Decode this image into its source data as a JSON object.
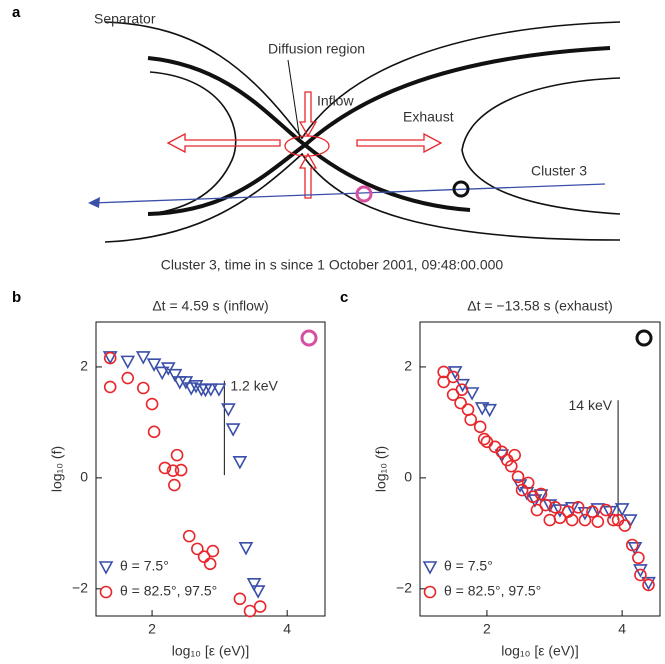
{
  "diagram": {
    "panel": "a",
    "separator": "Separator",
    "diffusion": "Diffusion region",
    "inflow": "Inflow",
    "exhaust": "Exhaust",
    "spacecraft": "Cluster 3",
    "caption": "Cluster 3, time in s since 1 October 2001, 09:48:00.000"
  },
  "chart_data": [
    {
      "type": "scatter",
      "panel": "b",
      "title": "Δt = 4.59 s (inflow)",
      "xlabel": "log₁₀ [ε (eV)]",
      "ylabel": "log₁₀ (f)",
      "xlim": [
        1.17,
        4.56
      ],
      "ylim": [
        -2.49,
        2.81
      ],
      "xticks": [
        2,
        4
      ],
      "yticks": [
        {
          "value": -2,
          "label": "−2"
        },
        0,
        2
      ],
      "legend": "lower left",
      "annotation": {
        "label": "1.2 keV",
        "x": 3.07
      },
      "series": [
        {
          "name": "θ = 7.5°",
          "color": "#3a4fa8",
          "marker": "triangle-down",
          "x": [
            1.38,
            1.64,
            1.87,
            2.03,
            2.15,
            2.24,
            2.34,
            2.41,
            2.5,
            2.58,
            2.65,
            2.73,
            2.79,
            2.87,
            2.99,
            3.13,
            3.2,
            3.3,
            3.39,
            3.51,
            3.57
          ],
          "values": [
            2.18,
            2.1,
            2.18,
            2.05,
            1.9,
            1.98,
            1.86,
            1.73,
            1.73,
            1.62,
            1.66,
            1.6,
            1.59,
            1.6,
            1.6,
            1.24,
            0.88,
            0.29,
            -1.26,
            -1.91,
            -2.04
          ]
        },
        {
          "name": "θ = 82.5°, 97.5°",
          "color": "#e8262b",
          "marker": "circle",
          "x": [
            1.38,
            1.38,
            1.64,
            1.87,
            2.0,
            2.03,
            2.19,
            2.31,
            2.33,
            2.37,
            2.43,
            2.55,
            2.67,
            2.77,
            2.86,
            2.9,
            3.3,
            3.45,
            3.6
          ],
          "values": [
            2.16,
            1.64,
            1.8,
            1.62,
            1.33,
            0.83,
            0.18,
            0.13,
            -0.13,
            0.41,
            0.14,
            -1.05,
            -1.28,
            -1.42,
            -1.55,
            -1.32,
            -2.18,
            -2.4,
            -2.32
          ]
        }
      ]
    },
    {
      "type": "scatter",
      "panel": "c",
      "title": "Δt = −13.58 s (exhaust)",
      "xlabel": "log₁₀ [ε (eV)]",
      "ylabel": "log₁₀ (f)",
      "xlim": [
        1.01,
        4.56
      ],
      "ylim": [
        -2.49,
        2.81
      ],
      "xticks": [
        2,
        4
      ],
      "yticks": [
        {
          "value": -2,
          "label": "−2"
        },
        0,
        2
      ],
      "legend": "lower left",
      "annotation": {
        "label": "14 keV",
        "x": 3.94
      },
      "series": [
        {
          "name": "θ = 7.5°",
          "color": "#3a4fa8",
          "marker": "triangle-down",
          "x": [
            1.53,
            1.64,
            1.78,
            1.93,
            2.04,
            2.22,
            2.49,
            2.59,
            2.71,
            2.8,
            2.93,
            3.08,
            3.26,
            3.45,
            3.64,
            3.82,
            4.0,
            4.12,
            4.19,
            4.27,
            4.39
          ],
          "values": [
            1.91,
            1.68,
            1.53,
            1.26,
            1.23,
            0.41,
            -0.13,
            -0.27,
            -0.4,
            -0.31,
            -0.49,
            -0.58,
            -0.54,
            -0.63,
            -0.56,
            -0.61,
            -0.56,
            -0.76,
            -1.26,
            -1.66,
            -1.89
          ]
        },
        {
          "name": "θ = 82.5°, 97.5°",
          "color": "#e8262b",
          "marker": "circle",
          "x": [
            1.36,
            1.36,
            1.5,
            1.5,
            1.61,
            1.63,
            1.72,
            1.76,
            1.9,
            1.96,
            2.0,
            2.12,
            2.22,
            2.3,
            2.36,
            2.41,
            2.46,
            2.52,
            2.61,
            2.68,
            2.74,
            2.8,
            2.87,
            2.93,
            3.01,
            3.08,
            3.2,
            3.26,
            3.35,
            3.45,
            3.56,
            3.64,
            3.76,
            3.87,
            3.94,
            4.04,
            4.15,
            4.24,
            4.27,
            4.39
          ],
          "values": [
            1.91,
            1.73,
            1.82,
            1.5,
            1.35,
            1.59,
            1.23,
            1.05,
            0.92,
            0.7,
            0.65,
            0.56,
            0.47,
            0.32,
            0.21,
            0.41,
            0.02,
            -0.22,
            -0.09,
            -0.34,
            -0.58,
            -0.29,
            -0.49,
            -0.76,
            -0.53,
            -0.72,
            -0.61,
            -0.76,
            -0.53,
            -0.76,
            -0.61,
            -0.79,
            -0.58,
            -0.76,
            -0.76,
            -0.86,
            -1.21,
            -1.44,
            -1.75,
            -1.93
          ]
        }
      ]
    }
  ]
}
